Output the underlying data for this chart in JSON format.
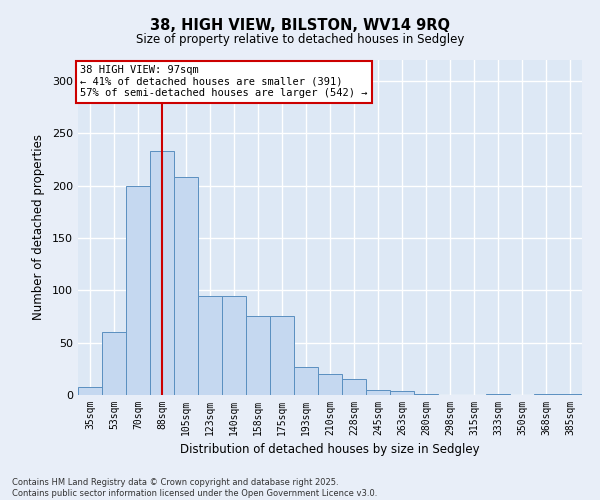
{
  "title_line1": "38, HIGH VIEW, BILSTON, WV14 9RQ",
  "title_line2": "Size of property relative to detached houses in Sedgley",
  "xlabel": "Distribution of detached houses by size in Sedgley",
  "ylabel": "Number of detached properties",
  "categories": [
    "35sqm",
    "53sqm",
    "70sqm",
    "88sqm",
    "105sqm",
    "123sqm",
    "140sqm",
    "158sqm",
    "175sqm",
    "193sqm",
    "210sqm",
    "228sqm",
    "245sqm",
    "263sqm",
    "280sqm",
    "298sqm",
    "315sqm",
    "333sqm",
    "350sqm",
    "368sqm",
    "385sqm"
  ],
  "values": [
    8,
    60,
    200,
    233,
    208,
    95,
    95,
    75,
    75,
    27,
    20,
    15,
    5,
    4,
    1,
    0,
    0,
    1,
    0,
    1,
    1
  ],
  "bar_color": "#c5d8f0",
  "bar_edge_color": "#5a8fc0",
  "vline_x_index": 3,
  "vline_color": "#cc0000",
  "annotation_text": "38 HIGH VIEW: 97sqm\n← 41% of detached houses are smaller (391)\n57% of semi-detached houses are larger (542) →",
  "annotation_box_color": "#ffffff",
  "annotation_box_edge": "#cc0000",
  "ylim": [
    0,
    320
  ],
  "yticks": [
    0,
    50,
    100,
    150,
    200,
    250,
    300
  ],
  "background_color": "#dde8f5",
  "fig_background_color": "#e8eef8",
  "footer_text": "Contains HM Land Registry data © Crown copyright and database right 2025.\nContains public sector information licensed under the Open Government Licence v3.0.",
  "grid_color": "#ffffff"
}
